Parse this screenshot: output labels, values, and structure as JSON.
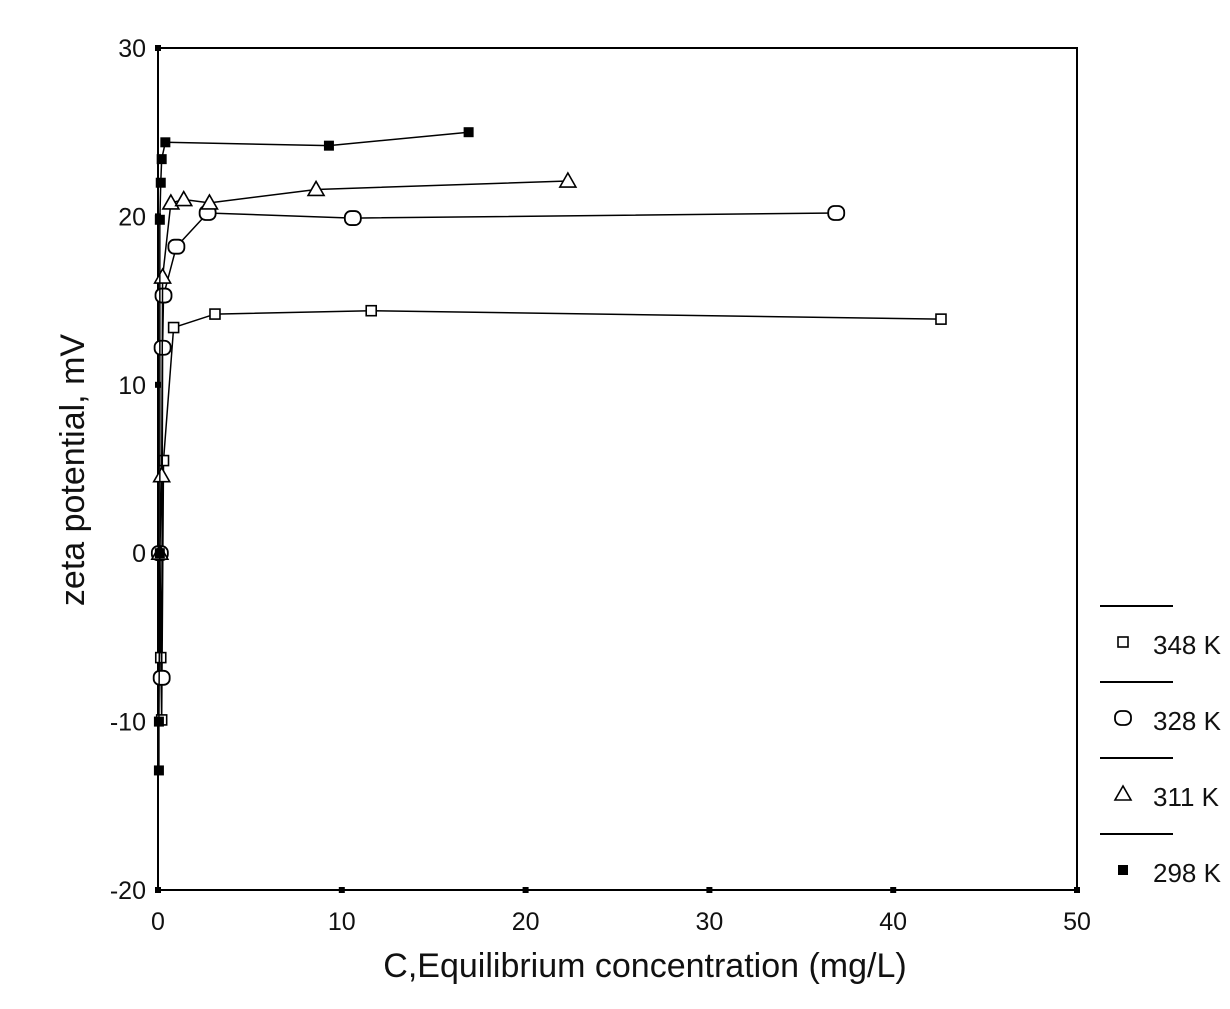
{
  "chart_data": {
    "type": "scatter",
    "title": "",
    "xlabel": "C,Equilibrium concentration (mg/L)",
    "ylabel": "zeta potential, mV",
    "xlim": [
      0,
      50
    ],
    "ylim": [
      -20,
      30
    ],
    "xticks": [
      0,
      10,
      20,
      30,
      40,
      50
    ],
    "yticks": [
      -20,
      -10,
      0,
      10,
      20,
      30
    ],
    "xtick_labels": [
      "0",
      "10",
      "20",
      "30",
      "40",
      "50"
    ],
    "ytick_labels": [
      "-20",
      "-10",
      "0",
      "10",
      "20",
      "30"
    ],
    "grid": false,
    "legend_position": "right",
    "series": [
      {
        "name": "348 K",
        "marker": "square-open",
        "x": [
          0.1,
          0.15,
          0.2,
          0.3,
          0.85,
          3.1,
          11.6,
          42.6
        ],
        "y": [
          0,
          -6.2,
          -9.9,
          5.5,
          13.4,
          14.2,
          14.4,
          13.9
        ]
      },
      {
        "name": "328 K",
        "marker": "circle-open",
        "x": [
          0.1,
          0.2,
          0.25,
          0.3,
          1.0,
          2.7,
          10.6,
          36.9
        ],
        "y": [
          0,
          -7.4,
          12.2,
          15.3,
          18.2,
          20.2,
          19.9,
          20.2
        ]
      },
      {
        "name": "311 K",
        "marker": "triangle-open",
        "x": [
          0.1,
          0.2,
          0.25,
          0.7,
          1.4,
          2.8,
          8.6,
          22.3
        ],
        "y": [
          0,
          4.6,
          16.4,
          20.8,
          21.0,
          20.8,
          21.6,
          22.1
        ]
      },
      {
        "name": "298 K",
        "marker": "square-filled",
        "x": [
          0.05,
          0.05,
          0.1,
          0.1,
          0.15,
          0.2,
          0.4,
          9.3,
          16.9
        ],
        "y": [
          -12.9,
          -10.0,
          0,
          19.8,
          22.0,
          23.4,
          24.4,
          24.2,
          25.0
        ]
      }
    ]
  }
}
